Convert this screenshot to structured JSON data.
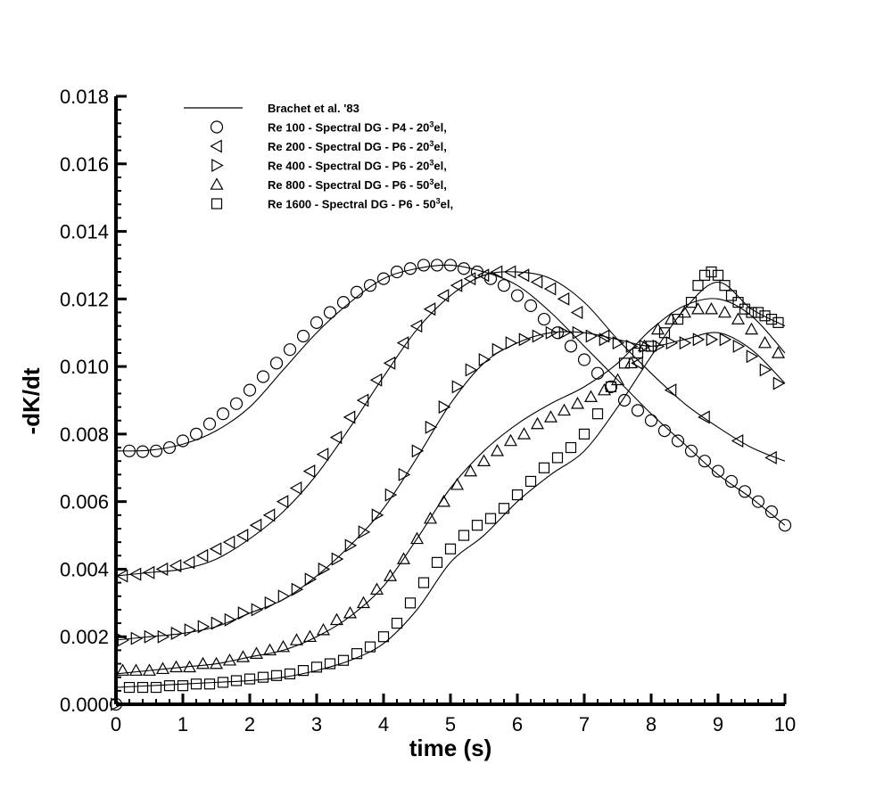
{
  "chart_data": {
    "type": "line",
    "title": "",
    "xlabel": "time (s)",
    "ylabel": "-dK/dt",
    "xlim": [
      0,
      10
    ],
    "ylim": [
      0,
      0.018
    ],
    "xticks": [
      "0",
      "1",
      "2",
      "3",
      "4",
      "5",
      "6",
      "7",
      "8",
      "9",
      "10"
    ],
    "yticks": [
      "0.000",
      "0.002",
      "0.004",
      "0.006",
      "0.008",
      "0.010",
      "0.012",
      "0.014",
      "0.016",
      "0.018"
    ],
    "grid": false,
    "legend_position": "top-left",
    "legend": [
      {
        "label": "Brachet et al. '83",
        "marker": "line"
      },
      {
        "label_pre": "Re 100 - Spectral DG - P4 - 20",
        "label_sup": "3",
        "label_post": "el,",
        "marker": "circle"
      },
      {
        "label_pre": "Re 200 - Spectral DG - P6 - 20",
        "label_sup": "3",
        "label_post": "el,",
        "marker": "triangle-left"
      },
      {
        "label_pre": "Re 400 - Spectral DG - P6 - 20",
        "label_sup": "3",
        "label_post": "el,",
        "marker": "triangle-right"
      },
      {
        "label_pre": "Re 800 - Spectral DG - P6 - 50",
        "label_sup": "3",
        "label_post": "el,",
        "marker": "triangle-up"
      },
      {
        "label_pre": "Re 1600 - Spectral DG - P6 - 50",
        "label_sup": "3",
        "label_post": "el,",
        "marker": "square"
      }
    ],
    "reference_curves": [
      {
        "name": "Brachet Re 100",
        "x": [
          0,
          0.5,
          1,
          1.5,
          2,
          2.5,
          3,
          3.5,
          4,
          4.5,
          5,
          5.5,
          6,
          6.5,
          7,
          7.5,
          8,
          8.5,
          9,
          9.5,
          10
        ],
        "y": [
          0.0075,
          0.00752,
          0.0077,
          0.0081,
          0.0088,
          0.0099,
          0.011,
          0.0119,
          0.0126,
          0.0129,
          0.013,
          0.0128,
          0.0124,
          0.0116,
          0.0106,
          0.0096,
          0.0086,
          0.0077,
          0.0068,
          0.0061,
          0.0053
        ]
      },
      {
        "name": "Brachet Re 200",
        "x": [
          0,
          0.5,
          1,
          1.5,
          2,
          2.5,
          3,
          3.5,
          4,
          4.5,
          5,
          5.5,
          6,
          6.5,
          7,
          7.5,
          8,
          8.5,
          9,
          9.5,
          10
        ],
        "y": [
          0.0038,
          0.0039,
          0.004,
          0.0043,
          0.0049,
          0.0057,
          0.0068,
          0.0082,
          0.0097,
          0.0111,
          0.0121,
          0.0127,
          0.0128,
          0.0126,
          0.0119,
          0.0108,
          0.0098,
          0.0089,
          0.0082,
          0.0076,
          0.0072
        ]
      },
      {
        "name": "Brachet Re 400",
        "x": [
          0,
          0.5,
          1,
          1.5,
          2,
          2.5,
          3,
          3.5,
          4,
          4.5,
          5,
          5.5,
          6,
          6.5,
          7,
          7.5,
          8,
          8.5,
          9,
          9.5,
          10
        ],
        "y": [
          0.0019,
          0.002,
          0.0021,
          0.0023,
          0.0027,
          0.0031,
          0.0038,
          0.0047,
          0.0058,
          0.0073,
          0.0089,
          0.0101,
          0.0107,
          0.011,
          0.011,
          0.0108,
          0.0106,
          0.0108,
          0.011,
          0.0105,
          0.0095
        ]
      },
      {
        "name": "Brachet Re 800",
        "x": [
          0,
          0.5,
          1,
          1.5,
          2,
          2.5,
          3,
          3.5,
          4,
          4.5,
          5,
          5.5,
          6,
          6.5,
          7,
          7.5,
          8,
          8.5,
          9,
          9.5,
          10
        ],
        "y": [
          0.0009,
          0.001,
          0.0011,
          0.0012,
          0.0014,
          0.0016,
          0.002,
          0.0026,
          0.0035,
          0.0049,
          0.0064,
          0.0075,
          0.0083,
          0.0089,
          0.0094,
          0.0101,
          0.0111,
          0.0118,
          0.012,
          0.0115,
          0.0104
        ]
      },
      {
        "name": "Brachet Re 1600",
        "x": [
          0,
          0.5,
          1,
          1.5,
          2,
          2.5,
          3,
          3.5,
          4,
          4.5,
          5,
          5.5,
          6,
          6.5,
          7,
          7.5,
          8,
          8.5,
          9,
          9.5,
          10
        ],
        "y": [
          0.0005,
          0.00055,
          0.0006,
          0.00065,
          0.0007,
          0.0008,
          0.001,
          0.0013,
          0.0018,
          0.0028,
          0.0042,
          0.005,
          0.006,
          0.0068,
          0.0075,
          0.0088,
          0.0103,
          0.0117,
          0.0125,
          0.0117,
          0.0112
        ]
      }
    ],
    "series": [
      {
        "name": "Re 100 - Spectral DG - P4 - 20^3el",
        "marker": "circle",
        "x": [
          0.2,
          0.4,
          0.6,
          0.8,
          1.0,
          1.2,
          1.4,
          1.6,
          1.8,
          2.0,
          2.2,
          2.4,
          2.6,
          2.8,
          3.0,
          3.2,
          3.4,
          3.6,
          3.8,
          4.0,
          4.2,
          4.4,
          4.6,
          4.8,
          5.0,
          5.2,
          5.4,
          5.6,
          5.8,
          6.0,
          6.2,
          6.4,
          6.6,
          6.8,
          7.0,
          7.2,
          7.4,
          7.6,
          7.8,
          8.0,
          8.2,
          8.4,
          8.6,
          8.8,
          9.0,
          9.2,
          9.4,
          9.6,
          9.8,
          10.0
        ],
        "y": [
          0.0075,
          0.00748,
          0.0075,
          0.0076,
          0.0078,
          0.008,
          0.0083,
          0.0086,
          0.0089,
          0.0093,
          0.0097,
          0.0101,
          0.0105,
          0.0109,
          0.0113,
          0.0116,
          0.0119,
          0.0122,
          0.0124,
          0.0126,
          0.0128,
          0.0129,
          0.013,
          0.013,
          0.013,
          0.0129,
          0.0128,
          0.0126,
          0.0124,
          0.0121,
          0.0118,
          0.0114,
          0.011,
          0.0106,
          0.0102,
          0.0098,
          0.0094,
          0.009,
          0.0087,
          0.0084,
          0.0081,
          0.0078,
          0.0075,
          0.0072,
          0.0069,
          0.0066,
          0.0063,
          0.006,
          0.0057,
          0.0053
        ]
      },
      {
        "name": "Re 200 - Spectral DG - P6 - 20^3el",
        "marker": "triangle-left",
        "x": [
          0.1,
          0.3,
          0.5,
          0.7,
          0.9,
          1.1,
          1.3,
          1.5,
          1.7,
          1.9,
          2.1,
          2.3,
          2.5,
          2.7,
          2.9,
          3.1,
          3.3,
          3.5,
          3.7,
          3.9,
          4.1,
          4.3,
          4.5,
          4.7,
          4.9,
          5.1,
          5.3,
          5.5,
          5.7,
          5.9,
          6.1,
          6.3,
          6.5,
          6.7,
          6.9,
          7.3,
          7.8,
          8.3,
          8.8,
          9.3,
          9.8
        ],
        "y": [
          0.0038,
          0.00385,
          0.0039,
          0.004,
          0.0041,
          0.0042,
          0.0044,
          0.0046,
          0.0048,
          0.005,
          0.0053,
          0.0056,
          0.006,
          0.0064,
          0.0069,
          0.0074,
          0.0079,
          0.0085,
          0.009,
          0.0096,
          0.0101,
          0.0107,
          0.0112,
          0.0117,
          0.0121,
          0.0124,
          0.0126,
          0.0127,
          0.0128,
          0.0128,
          0.0127,
          0.0125,
          0.0123,
          0.012,
          0.0116,
          0.0109,
          0.0101,
          0.0093,
          0.0085,
          0.0078,
          0.0073
        ]
      },
      {
        "name": "Re 400 - Spectral DG - P6 - 20^3el",
        "marker": "triangle-right",
        "x": [
          0.1,
          0.3,
          0.5,
          0.7,
          0.9,
          1.1,
          1.3,
          1.5,
          1.7,
          1.9,
          2.1,
          2.3,
          2.5,
          2.7,
          2.9,
          3.1,
          3.3,
          3.5,
          3.7,
          3.9,
          4.1,
          4.3,
          4.5,
          4.7,
          4.9,
          5.1,
          5.3,
          5.5,
          5.7,
          5.9,
          6.1,
          6.3,
          6.5,
          6.7,
          6.9,
          7.1,
          7.3,
          7.5,
          7.7,
          7.9,
          8.1,
          8.3,
          8.5,
          8.7,
          8.9,
          9.1,
          9.3,
          9.5,
          9.7,
          9.9
        ],
        "y": [
          0.0019,
          0.00195,
          0.002,
          0.002,
          0.0021,
          0.0022,
          0.0023,
          0.0024,
          0.0025,
          0.0027,
          0.0028,
          0.003,
          0.0032,
          0.0034,
          0.0037,
          0.004,
          0.0043,
          0.0047,
          0.0051,
          0.0056,
          0.0062,
          0.0068,
          0.0075,
          0.0082,
          0.0088,
          0.0094,
          0.0099,
          0.0102,
          0.0105,
          0.0107,
          0.0108,
          0.0109,
          0.011,
          0.011,
          0.011,
          0.0109,
          0.0108,
          0.0107,
          0.0106,
          0.0106,
          0.0106,
          0.0107,
          0.0107,
          0.0108,
          0.0108,
          0.0108,
          0.0106,
          0.0103,
          0.0099,
          0.0095
        ]
      },
      {
        "name": "Re 800 - Spectral DG - P6 - 50^3el",
        "marker": "triangle-up",
        "x": [
          0.1,
          0.3,
          0.5,
          0.7,
          0.9,
          1.1,
          1.3,
          1.5,
          1.7,
          1.9,
          2.1,
          2.3,
          2.5,
          2.7,
          2.9,
          3.1,
          3.3,
          3.5,
          3.7,
          3.9,
          4.1,
          4.3,
          4.5,
          4.7,
          4.9,
          5.1,
          5.3,
          5.5,
          5.7,
          5.9,
          6.1,
          6.3,
          6.5,
          6.7,
          6.9,
          7.1,
          7.3,
          7.5,
          7.7,
          7.9,
          8.1,
          8.3,
          8.5,
          8.7,
          8.9,
          9.1,
          9.3,
          9.5,
          9.7,
          9.9
        ],
        "y": [
          0.001,
          0.001,
          0.001,
          0.00105,
          0.0011,
          0.0011,
          0.0012,
          0.0012,
          0.0013,
          0.0014,
          0.0015,
          0.0016,
          0.0017,
          0.0019,
          0.002,
          0.0022,
          0.0025,
          0.0027,
          0.003,
          0.0034,
          0.0038,
          0.0043,
          0.0049,
          0.0055,
          0.006,
          0.0065,
          0.0069,
          0.0072,
          0.0075,
          0.0078,
          0.008,
          0.0083,
          0.0085,
          0.0087,
          0.0089,
          0.0091,
          0.0093,
          0.0096,
          0.0101,
          0.0106,
          0.0111,
          0.0114,
          0.0116,
          0.0117,
          0.0117,
          0.0116,
          0.0114,
          0.0111,
          0.0107,
          0.0104
        ]
      },
      {
        "name": "Re 1600 - Spectral DG - P6 - 50^3el",
        "marker": "square",
        "x": [
          0.2,
          0.4,
          0.6,
          0.8,
          1.0,
          1.2,
          1.4,
          1.6,
          1.8,
          2.0,
          2.2,
          2.4,
          2.6,
          2.8,
          3.0,
          3.2,
          3.4,
          3.6,
          3.8,
          4.0,
          4.2,
          4.4,
          4.6,
          4.8,
          5.0,
          5.2,
          5.4,
          5.6,
          5.8,
          6.0,
          6.2,
          6.4,
          6.6,
          6.8,
          7.0,
          7.2,
          7.4,
          7.6,
          7.8,
          8.0,
          8.2,
          8.4,
          8.6,
          8.7,
          8.8,
          8.9,
          9.0,
          9.1,
          9.2,
          9.3,
          9.4,
          9.5,
          9.6,
          9.7,
          9.8,
          9.9
        ],
        "y": [
          0.0005,
          0.0005,
          0.0005,
          0.00055,
          0.00055,
          0.0006,
          0.0006,
          0.00065,
          0.0007,
          0.00075,
          0.0008,
          0.00085,
          0.0009,
          0.001,
          0.0011,
          0.0012,
          0.0013,
          0.0015,
          0.0017,
          0.002,
          0.0024,
          0.003,
          0.0036,
          0.0042,
          0.0046,
          0.005,
          0.0053,
          0.0055,
          0.0058,
          0.0062,
          0.0066,
          0.007,
          0.0073,
          0.0076,
          0.008,
          0.0086,
          0.0094,
          0.0101,
          0.0104,
          0.0106,
          0.011,
          0.0114,
          0.0119,
          0.0124,
          0.0127,
          0.0128,
          0.0127,
          0.0124,
          0.0121,
          0.0119,
          0.0117,
          0.0116,
          0.0116,
          0.0115,
          0.0114,
          0.0113
        ]
      }
    ]
  }
}
